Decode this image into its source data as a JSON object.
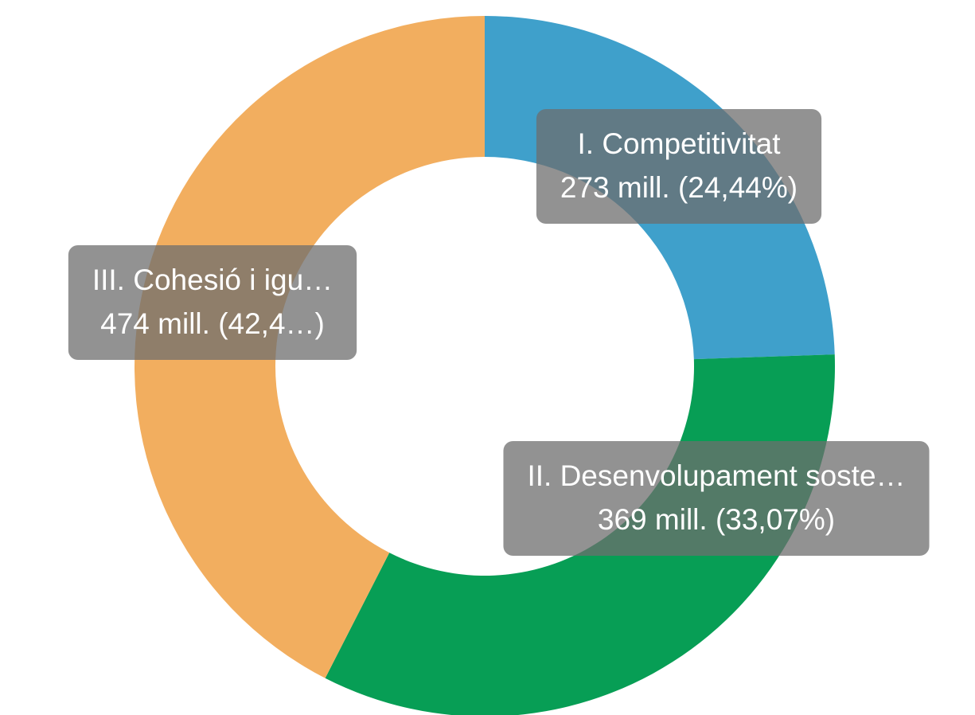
{
  "chart_data": {
    "type": "donut",
    "categories": [
      "I. Competitivitat",
      "II. Desenvolupament soste…",
      "III. Cohesió i igu…"
    ],
    "values": [
      273,
      369,
      474
    ],
    "value_labels": [
      "273 mill. (24,44%)",
      "369 mill. (33,07%)",
      "474 mill. (42,4…)"
    ],
    "colors": [
      "#3fa0cb",
      "#079e55",
      "#f2ae5f"
    ]
  }
}
